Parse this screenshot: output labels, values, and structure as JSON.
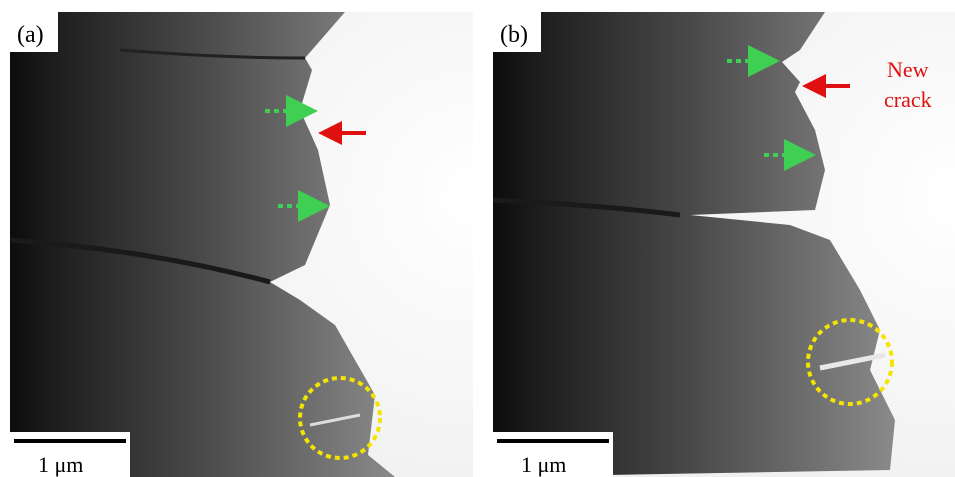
{
  "panels": [
    {
      "label": "(a)",
      "scale_bar": "1 μm"
    },
    {
      "label": "(b)",
      "scale_bar": "1 μm",
      "annotation": [
        "New",
        "crack"
      ]
    }
  ]
}
